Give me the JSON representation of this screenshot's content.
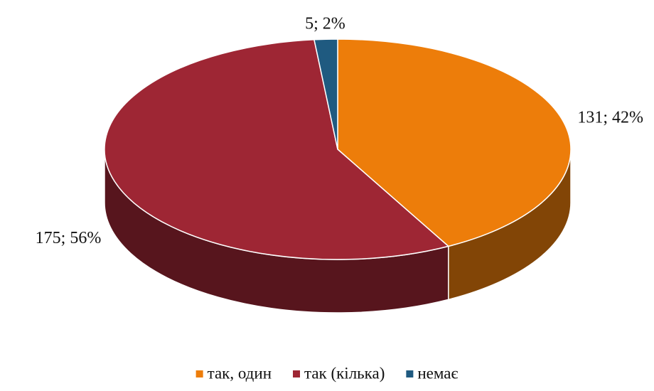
{
  "chart_data": {
    "type": "pie",
    "categories": [
      "так, один",
      "так (кілька)",
      "немає"
    ],
    "values": [
      131,
      175,
      5
    ],
    "value_labels": [
      "131; 42%",
      "175; 56%",
      "5; 2%"
    ],
    "colors": [
      "#ED7D0A",
      "#9E2634",
      "#1F5A80"
    ],
    "legend": "bottom"
  }
}
